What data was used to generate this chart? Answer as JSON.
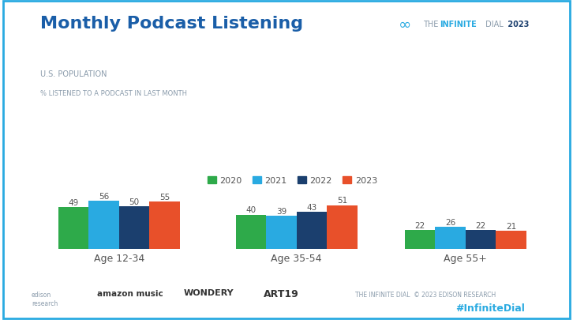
{
  "title": "Monthly Podcast Listening",
  "subtitle": "U.S. POPULATION",
  "subtitle2": "% LISTENED TO A PODCAST IN LAST MONTH",
  "categories": [
    "Age 12-34",
    "Age 35-54",
    "Age 55+"
  ],
  "years": [
    "2020",
    "2021",
    "2022",
    "2023"
  ],
  "values": {
    "Age 12-34": [
      49,
      56,
      50,
      55
    ],
    "Age 35-54": [
      40,
      39,
      43,
      51
    ],
    "Age 55+": [
      22,
      26,
      22,
      21
    ]
  },
  "bar_colors": [
    "#2eaa4a",
    "#29aae1",
    "#1b3f6e",
    "#e8502a"
  ],
  "background_color": "#ffffff",
  "title_color": "#1a5ea8",
  "subtitle_color": "#8a9bab",
  "text_color": "#555555",
  "bar_label_color": "#555555",
  "footer_hashtag_color": "#29aae1",
  "footer_text_color": "#8a9bab",
  "ylim": [
    0,
    68
  ],
  "bar_width": 0.18,
  "legend_labels": [
    "2020",
    "2021",
    "2022",
    "2023"
  ],
  "infinite_dial_year": "2023",
  "hashtag": "#InfiniteDial",
  "copyright": "THE INFINITE DIAL  © 2023 EDISON RESEARCH"
}
